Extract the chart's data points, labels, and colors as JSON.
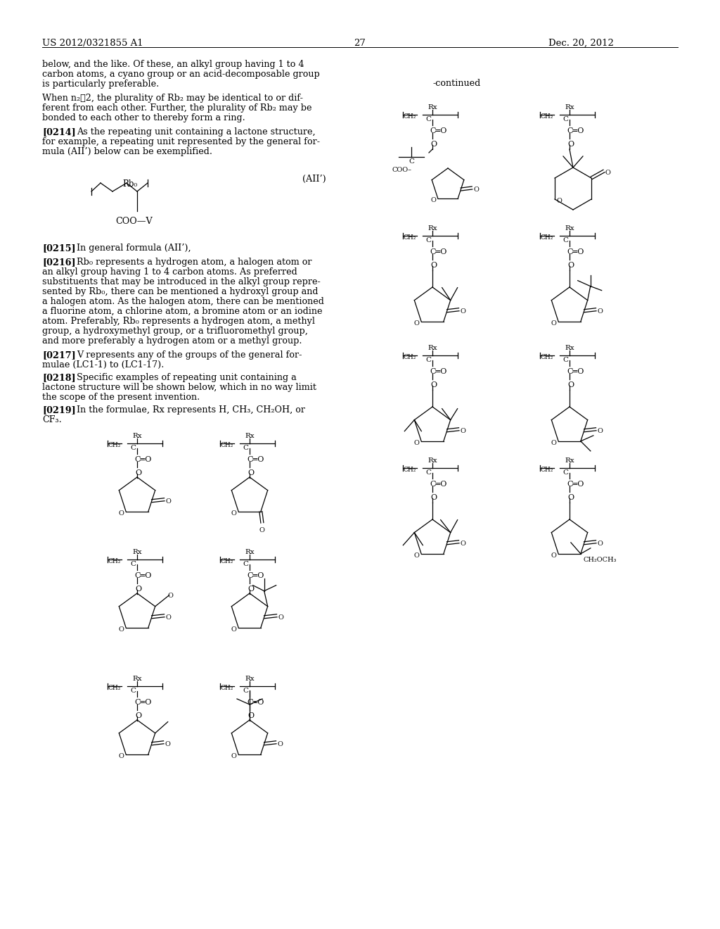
{
  "bg": "#ffffff",
  "header_left": "US 2012/0321855 A1",
  "header_right": "Dec. 20, 2012",
  "page_num": "27",
  "continued": "-continued",
  "body_lines_left": [
    [
      60,
      85,
      "below, and the like. Of these, an alkyl group having 1 to 4",
      false
    ],
    [
      60,
      99,
      "carbon atoms, a cyano group or an acid-decomposable group",
      false
    ],
    [
      60,
      113,
      "is particularly preferable.",
      false
    ],
    [
      60,
      133,
      "When n₂≧2, the plurality of Rb₂ may be identical to or dif-",
      false
    ],
    [
      60,
      147,
      "ferent from each other. Further, the plurality of Rb₂ may be",
      false
    ],
    [
      60,
      161,
      "bonded to each other to thereby form a ring.",
      false
    ],
    [
      60,
      181,
      "[0214]",
      true
    ],
    [
      109,
      181,
      "As the repeating unit containing a lactone structure,",
      false
    ],
    [
      60,
      195,
      "for example, a repeating unit represented by the general for-",
      false
    ],
    [
      60,
      209,
      "mula (AII’) below can be exemplified.",
      false
    ],
    [
      60,
      346,
      "[0215]",
      true
    ],
    [
      109,
      346,
      "In general formula (AII’),",
      false
    ],
    [
      60,
      366,
      "[0216]",
      true
    ],
    [
      109,
      366,
      "Rb₀ represents a hydrogen atom, a halogen atom or",
      false
    ],
    [
      60,
      380,
      "an alkyl group having 1 to 4 carbon atoms. As preferred",
      false
    ],
    [
      60,
      394,
      "substituents that may be introduced in the alkyl group repre-",
      false
    ],
    [
      60,
      408,
      "sented by Rb₀, there can be mentioned a hydroxyl group and",
      false
    ],
    [
      60,
      422,
      "a halogen atom. As the halogen atom, there can be mentioned",
      false
    ],
    [
      60,
      436,
      "a fluorine atom, a chlorine atom, a bromine atom or an iodine",
      false
    ],
    [
      60,
      450,
      "atom. Preferably, Rb₀ represents a hydrogen atom, a methyl",
      false
    ],
    [
      60,
      464,
      "group, a hydroxymethyl group, or a trifluoromethyl group,",
      false
    ],
    [
      60,
      478,
      "and more preferably a hydrogen atom or a methyl group.",
      false
    ],
    [
      60,
      498,
      "[0217]",
      true
    ],
    [
      109,
      498,
      "V represents any of the groups of the general for-",
      false
    ],
    [
      60,
      512,
      "mulae (LC1-1) to (LC1-17).",
      false
    ],
    [
      60,
      530,
      "[0218]",
      true
    ],
    [
      109,
      530,
      "Specific examples of repeating unit containing a",
      false
    ],
    [
      60,
      544,
      "lactone structure will be shown below, which in no way limit",
      false
    ],
    [
      60,
      558,
      "the scope of the present invention.",
      false
    ],
    [
      60,
      576,
      "[0219]",
      true
    ],
    [
      109,
      576,
      "In the formulae, Rx represents H, CH₃, CH₂OH, or",
      false
    ],
    [
      60,
      590,
      "CF₃.",
      false
    ]
  ]
}
